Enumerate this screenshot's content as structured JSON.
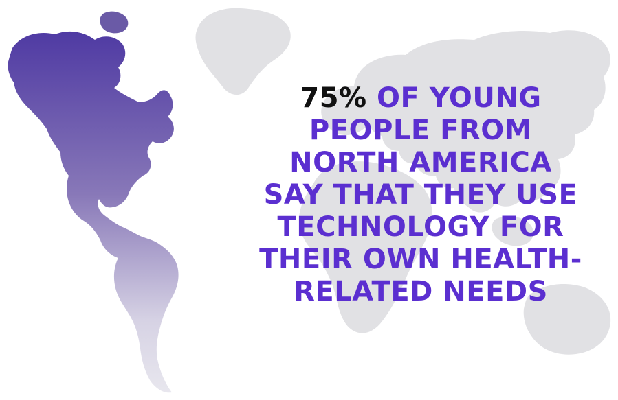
{
  "stat": {
    "highlight": "75%",
    "lines": [
      " OF YOUNG",
      "PEOPLE FROM",
      "NORTH AMERICA",
      "SAY THAT THEY USE",
      "TECHNOLOGY FOR",
      "THEIR OWN HEALTH-",
      "RELATED NEEDS"
    ]
  },
  "colors": {
    "highlight_text": "#111111",
    "body_text": "#5b2fd0",
    "continent_gray": "#e1e1e4",
    "americas_gradient_top": "#4f3aa3",
    "americas_gradient_bottom": "#e6e4ee"
  }
}
